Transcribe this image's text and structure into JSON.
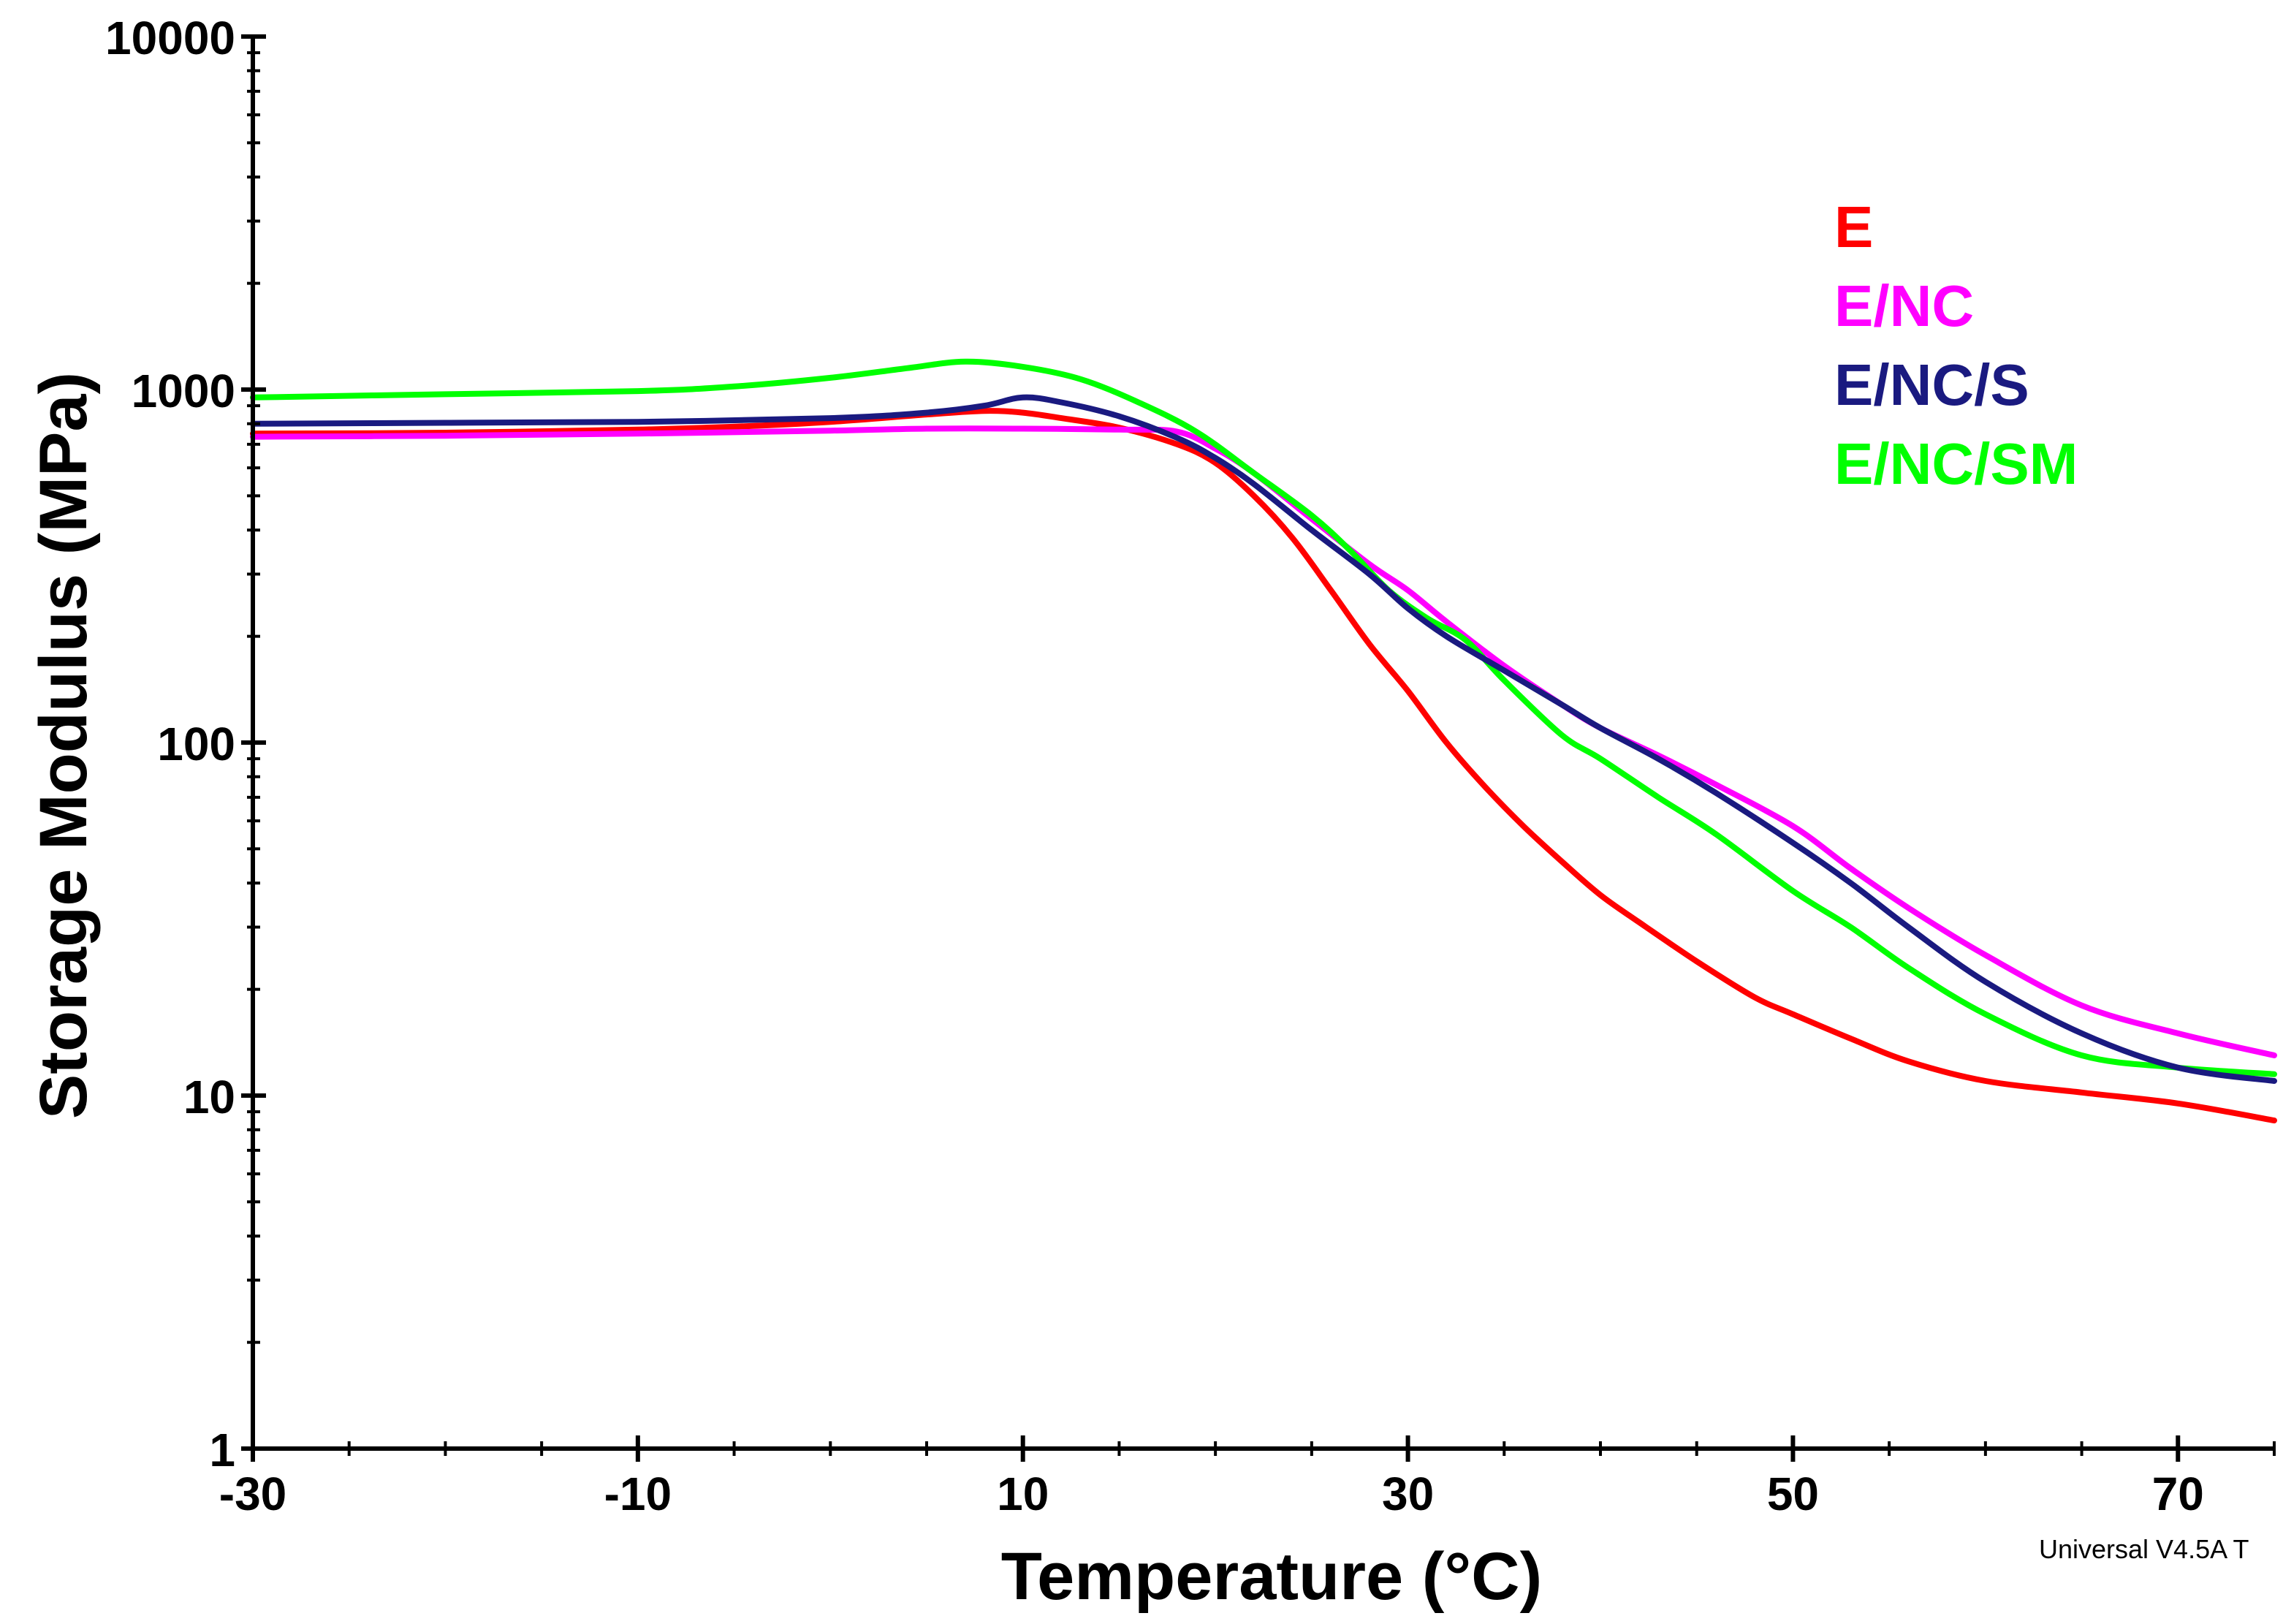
{
  "chart_data": {
    "type": "line",
    "xlabel": "Temperature (°C)",
    "ylabel": "Storage Modulus (MPa)",
    "xlim": [
      -30,
      75
    ],
    "ylim": [
      1,
      10000
    ],
    "yscale": "log",
    "grid": false,
    "legend_position": "top-right",
    "x_ticks": [
      -30,
      -10,
      10,
      30,
      50,
      70
    ],
    "x_tick_labels": [
      "-30",
      "-10",
      "10",
      "30",
      "50",
      "70"
    ],
    "y_ticks": [
      1,
      10,
      100,
      1000,
      10000
    ],
    "y_tick_labels": [
      "1",
      "10",
      "100",
      "1000",
      "10000"
    ],
    "series": [
      {
        "name": "E",
        "color": "#ff0000",
        "x": [
          -30,
          -20,
          -10,
          -5,
          0,
          5,
          8,
          10,
          12,
          15,
          18,
          20,
          22,
          24,
          26,
          28,
          30,
          32,
          34,
          36,
          38,
          40,
          42,
          45,
          48,
          50,
          53,
          56,
          60,
          65,
          70,
          75
        ],
        "y": [
          750,
          755,
          770,
          785,
          810,
          850,
          870,
          860,
          830,
          780,
          700,
          620,
          500,
          380,
          270,
          190,
          140,
          100,
          75,
          58,
          46,
          37,
          31,
          24,
          19,
          17,
          14.5,
          12.5,
          11,
          10.2,
          9.5,
          8.5
        ]
      },
      {
        "name": "E/NC",
        "color": "#ff00ff",
        "x": [
          -30,
          -20,
          -10,
          0,
          5,
          10,
          15,
          18,
          20,
          22,
          25,
          28,
          30,
          32,
          35,
          38,
          40,
          43,
          46,
          50,
          53,
          56,
          60,
          65,
          70,
          75
        ],
        "y": [
          735,
          740,
          750,
          765,
          775,
          775,
          770,
          760,
          680,
          580,
          430,
          320,
          270,
          220,
          165,
          128,
          110,
          92,
          76,
          58,
          44,
          34,
          25,
          18,
          15,
          13
        ]
      },
      {
        "name": "E/NC/S",
        "color": "#1a1a80",
        "x": [
          -30,
          -20,
          -10,
          0,
          5,
          8,
          10,
          12,
          15,
          18,
          20,
          22,
          25,
          28,
          30,
          32,
          35,
          38,
          40,
          43,
          46,
          50,
          53,
          56,
          60,
          65,
          70,
          75
        ],
        "y": [
          800,
          805,
          810,
          830,
          860,
          900,
          950,
          920,
          840,
          730,
          640,
          540,
          400,
          300,
          240,
          200,
          160,
          128,
          110,
          90,
          72,
          52,
          40,
          30,
          21,
          15,
          12,
          11
        ]
      },
      {
        "name": "E/NC/SM",
        "color": "#00ff00",
        "x": [
          -30,
          -20,
          -10,
          -5,
          0,
          4,
          7,
          10,
          13,
          16,
          19,
          22,
          25,
          27,
          29,
          31,
          33,
          35,
          38,
          40,
          43,
          46,
          50,
          53,
          56,
          60,
          65,
          70,
          75
        ],
        "y": [
          950,
          970,
          990,
          1020,
          1080,
          1150,
          1200,
          1160,
          1070,
          920,
          760,
          580,
          440,
          350,
          270,
          225,
          195,
          150,
          105,
          90,
          70,
          55,
          38,
          30,
          23,
          17,
          13,
          12,
          11.5
        ]
      }
    ],
    "annotation": "Universal V4.5A T"
  }
}
